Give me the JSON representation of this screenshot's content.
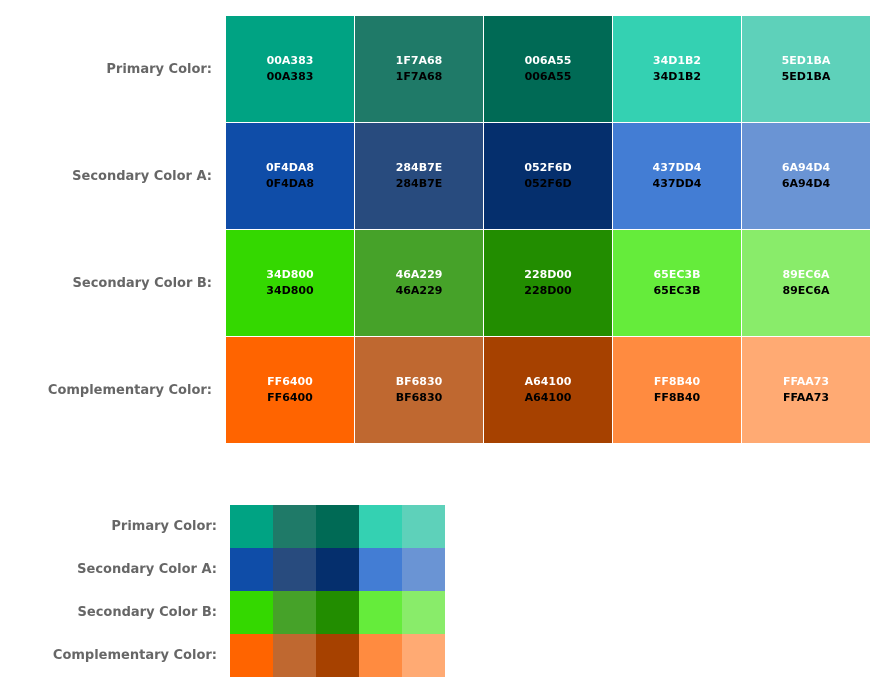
{
  "palette": [
    {
      "label": "Primary Color:",
      "swatches": [
        {
          "hex": "00A383",
          "color": "#00A383"
        },
        {
          "hex": "1F7A68",
          "color": "#1F7A68"
        },
        {
          "hex": "006A55",
          "color": "#006A55"
        },
        {
          "hex": "34D1B2",
          "color": "#34D1B2"
        },
        {
          "hex": "5ED1BA",
          "color": "#5ED1BA"
        }
      ]
    },
    {
      "label": "Secondary Color A:",
      "swatches": [
        {
          "hex": "0F4DA8",
          "color": "#0F4DA8"
        },
        {
          "hex": "284B7E",
          "color": "#284B7E"
        },
        {
          "hex": "052F6D",
          "color": "#052F6D"
        },
        {
          "hex": "437DD4",
          "color": "#437DD4"
        },
        {
          "hex": "6A94D4",
          "color": "#6A94D4"
        }
      ]
    },
    {
      "label": "Secondary Color B:",
      "swatches": [
        {
          "hex": "34D800",
          "color": "#34D800"
        },
        {
          "hex": "46A229",
          "color": "#46A229"
        },
        {
          "hex": "228D00",
          "color": "#228D00"
        },
        {
          "hex": "65EC3B",
          "color": "#65EC3B"
        },
        {
          "hex": "89EC6A",
          "color": "#89EC6A"
        }
      ]
    },
    {
      "label": "Complementary Color:",
      "swatches": [
        {
          "hex": "FF6400",
          "color": "#FF6400"
        },
        {
          "hex": "BF6830",
          "color": "#BF6830"
        },
        {
          "hex": "A64100",
          "color": "#A64100"
        },
        {
          "hex": "FF8B40",
          "color": "#FF8B40"
        },
        {
          "hex": "FFAA73",
          "color": "#FFAA73"
        }
      ]
    }
  ]
}
